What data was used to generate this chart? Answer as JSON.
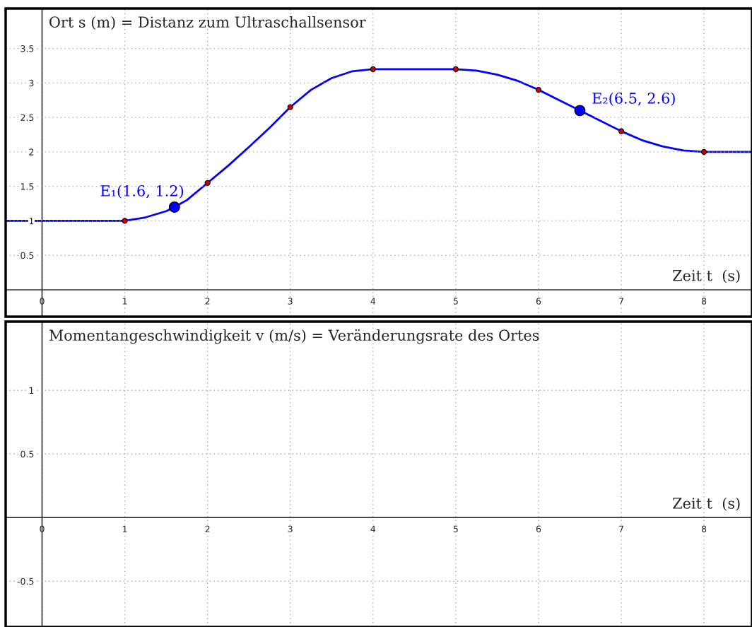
{
  "chart_data": [
    {
      "type": "line",
      "title": "Ort s (m) = Distanz zum Ultraschallsensor",
      "xlabel": "Zeit t  (s)",
      "xlim": [
        -0.44,
        8.58
      ],
      "ylim": [
        -0.39,
        4.08
      ],
      "xticks": [
        0,
        1,
        2,
        3,
        4,
        5,
        6,
        7,
        8
      ],
      "yticks": [
        0.5,
        1,
        1.5,
        2,
        2.5,
        3,
        3.5
      ],
      "grid": true,
      "series": [
        {
          "color": "#0000ff",
          "x": [
            -0.44,
            0,
            0.5,
            1,
            1.25,
            1.5,
            1.6,
            1.75,
            2,
            2.25,
            2.5,
            2.75,
            3,
            3.25,
            3.5,
            3.75,
            4,
            4.5,
            5,
            5.25,
            5.5,
            5.75,
            6,
            6.25,
            6.5,
            6.75,
            7,
            7.25,
            7.5,
            7.75,
            8,
            8.58
          ],
          "values": [
            1,
            1,
            1,
            1,
            1.05,
            1.14,
            1.2,
            1.3,
            1.55,
            1.8,
            2.07,
            2.35,
            2.65,
            2.9,
            3.07,
            3.17,
            3.2,
            3.2,
            3.2,
            3.18,
            3.12,
            3.03,
            2.9,
            2.75,
            2.6,
            2.45,
            2.3,
            2.17,
            2.08,
            2.02,
            2,
            2
          ]
        },
        {
          "type": "scatter",
          "color": "#cc0000",
          "marker": "circle",
          "x": [
            1,
            2,
            3,
            4,
            5,
            6,
            7,
            8
          ],
          "values": [
            1,
            1.55,
            2.65,
            3.2,
            3.2,
            2.9,
            2.3,
            2
          ]
        },
        {
          "type": "scatter",
          "color": "#0000ff",
          "marker": "circle",
          "x": [
            1.6,
            6.5
          ],
          "values": [
            1.2,
            2.6
          ],
          "value_labels": [
            "E₁(1.6, 1.2)",
            "E₂(6.5, 2.6)"
          ]
        }
      ]
    },
    {
      "type": "line",
      "title": "Momentangeschwindigkeit v (m/s) = Veränderungsrate des Ortes",
      "xlabel": "Zeit t  (s)",
      "xlim": [
        -0.44,
        8.58
      ],
      "ylim": [
        -0.86,
        1.54
      ],
      "xticks": [
        0,
        1,
        2,
        3,
        4,
        5,
        6,
        7,
        8
      ],
      "yticks": [
        -0.5,
        0.5,
        1
      ],
      "grid": true
    }
  ]
}
